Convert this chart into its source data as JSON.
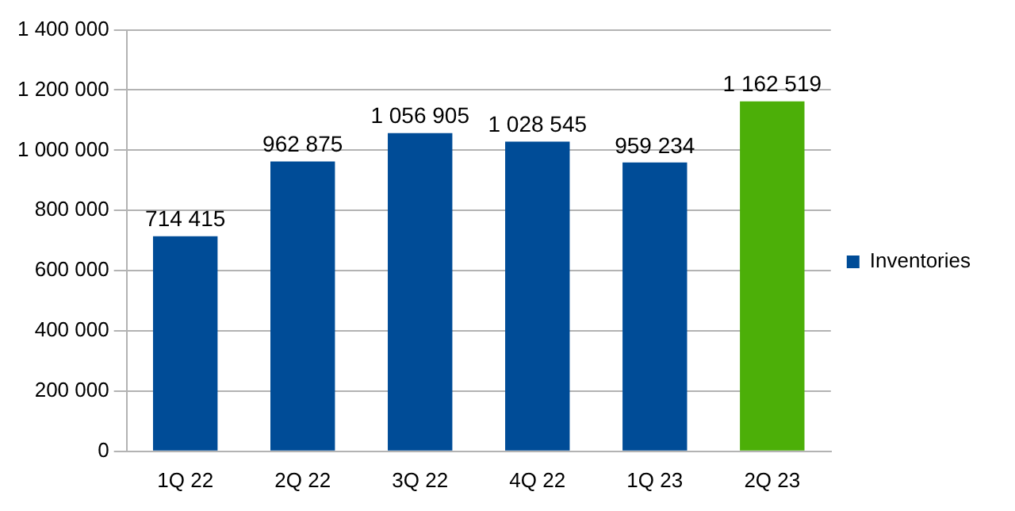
{
  "chart_data": {
    "type": "bar",
    "categories": [
      "1Q 22",
      "2Q 22",
      "3Q 22",
      "4Q 22",
      "1Q 23",
      "2Q 23"
    ],
    "series": [
      {
        "name": "Inventories",
        "color": "#004c97",
        "colors": [
          "#004c97",
          "#004c97",
          "#004c97",
          "#004c97",
          "#004c97",
          "#4caf08"
        ],
        "values": [
          714415,
          962875,
          1056905,
          1028545,
          959234,
          1162519
        ],
        "value_labels": [
          "714 415",
          "962 875",
          "1 056 905",
          "1 028 545",
          "959 234",
          "1 162 519"
        ]
      }
    ],
    "ylim": [
      0,
      1400000
    ],
    "yticks": [
      {
        "value": 0,
        "label": "0"
      },
      {
        "value": 200000,
        "label": "200 000"
      },
      {
        "value": 400000,
        "label": "400 000"
      },
      {
        "value": 600000,
        "label": "600 000"
      },
      {
        "value": 800000,
        "label": "800 000"
      },
      {
        "value": 1000000,
        "label": "1 000 000"
      },
      {
        "value": 1200000,
        "label": "1 200 000"
      },
      {
        "value": 1400000,
        "label": "1 400 000"
      }
    ],
    "grid": "y",
    "legend": "right"
  }
}
